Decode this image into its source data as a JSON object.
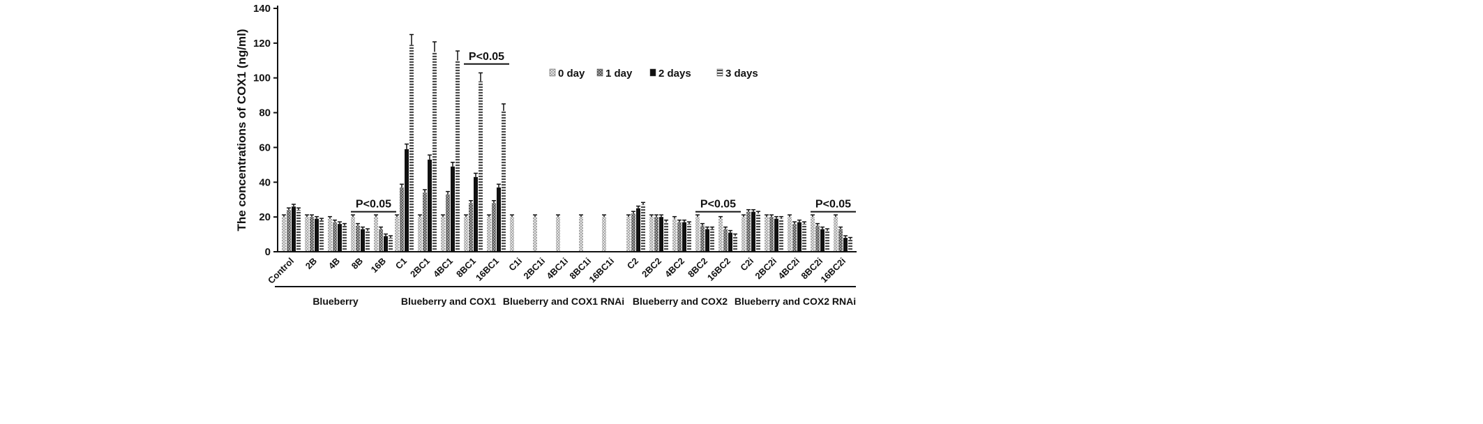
{
  "chart_data": {
    "type": "bar",
    "ylabel": "The concentrations of COX1 (ng/ml)",
    "ylim": [
      0,
      140
    ],
    "yticks": [
      0,
      20,
      40,
      60,
      80,
      100,
      120,
      140
    ],
    "legend": {
      "placement": "top-right",
      "entries": [
        "0 day",
        "1 day",
        "2 days",
        "3 days"
      ]
    },
    "categories": [
      "Control",
      "2B",
      "4B",
      "8B",
      "16B",
      "C1",
      "2BC1",
      "4BC1",
      "8BC1",
      "16BC1",
      "C1i",
      "2BC1i",
      "4BC1i",
      "8BC1i",
      "16BC1i",
      "C2",
      "2BC2",
      "4BC2",
      "8BC2",
      "16BC2",
      "C2i",
      "2BC2i",
      "4BC2i",
      "8BC2i",
      "16BC2i"
    ],
    "series": [
      {
        "name": "0 day",
        "values": [
          20,
          20,
          19,
          20,
          20,
          20,
          20,
          20,
          20,
          20,
          20,
          20,
          20,
          20,
          20,
          20,
          20,
          19,
          20,
          19,
          20,
          20,
          20,
          20,
          20
        ]
      },
      {
        "name": "1 day",
        "values": [
          24,
          20,
          17,
          15,
          13,
          37,
          34,
          33,
          28,
          28,
          0,
          0,
          0,
          0,
          0,
          22,
          20,
          17,
          15,
          13,
          23,
          20,
          16,
          15,
          13
        ]
      },
      {
        "name": "2 days",
        "values": [
          26,
          19,
          16,
          13,
          9,
          59,
          53,
          49,
          43,
          37,
          0,
          0,
          0,
          0,
          0,
          25,
          20,
          17,
          13,
          11,
          23,
          19,
          17,
          13,
          8
        ]
      },
      {
        "name": "3 days",
        "values": [
          24,
          18,
          15,
          12,
          8,
          119,
          115,
          110,
          98,
          81,
          0,
          0,
          0,
          0,
          0,
          27,
          17,
          16,
          13,
          9,
          22,
          19,
          16,
          12,
          7
        ]
      }
    ],
    "groups": [
      {
        "label": "Blueberry",
        "categories": [
          "Control",
          "2B",
          "4B",
          "8B",
          "16B"
        ]
      },
      {
        "label": "Blueberry and COX1",
        "categories": [
          "C1",
          "2BC1",
          "4BC1",
          "8BC1",
          "16BC1"
        ]
      },
      {
        "label": "Blueberry and COX1 RNAi",
        "categories": [
          "C1i",
          "2BC1i",
          "4BC1i",
          "8BC1i",
          "16BC1i"
        ]
      },
      {
        "label": "Blueberry and COX2",
        "categories": [
          "C2",
          "2BC2",
          "4BC2",
          "8BC2",
          "16BC2"
        ]
      },
      {
        "label": "Blueberry and COX2 RNAi",
        "categories": [
          "C2i",
          "2BC2i",
          "4BC2i",
          "8BC2i",
          "16BC2i"
        ]
      }
    ],
    "annotations": [
      {
        "text": "P<0.05",
        "from": "8B",
        "to": "16B",
        "y": 23
      },
      {
        "text": "P<0.05",
        "from": "8BC1",
        "to": "16BC1",
        "y": 108
      },
      {
        "text": "P<0.05",
        "from": "8BC2",
        "to": "16BC2",
        "y": 23
      },
      {
        "text": "P<0.05",
        "from": "8BC2i",
        "to": "16BC2i",
        "y": 23
      }
    ],
    "colors": {
      "0 day": "#cfcfcf",
      "1 day": "#7a7a7a",
      "2 days": "#111111",
      "3 days": "#9a9a9a"
    }
  }
}
